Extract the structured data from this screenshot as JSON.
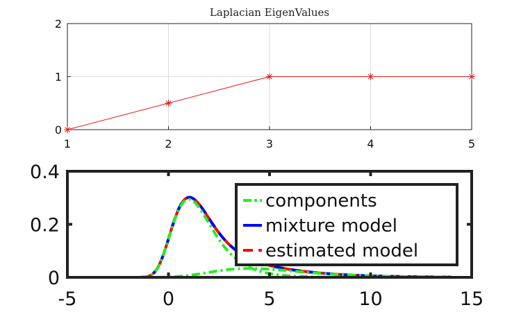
{
  "chart_data": [
    {
      "type": "line",
      "title": "Laplacian EigenValues",
      "x": [
        1,
        2,
        3,
        4,
        5
      ],
      "series": [
        {
          "values": [
            0,
            0.5,
            1,
            1,
            1
          ],
          "color": "#e41a1c",
          "marker": "asterisk"
        }
      ],
      "xlim": [
        1,
        5
      ],
      "ylim": [
        0,
        2
      ],
      "xticks": [
        "1",
        "2",
        "3",
        "4",
        "5"
      ],
      "yticks": [
        "0",
        "1",
        "2"
      ],
      "grid": true
    },
    {
      "type": "line",
      "xlim": [
        -5,
        15
      ],
      "ylim": [
        0,
        0.4
      ],
      "xticks": [
        "-5",
        "0",
        "5",
        "10",
        "15"
      ],
      "yticks": [
        "0",
        "0.2",
        "0.4"
      ],
      "grid": false,
      "legend_position": "top-right",
      "mixture": {
        "x_range": [
          -4,
          14
        ],
        "components": [
          {
            "weight": 0.8,
            "mode": 1,
            "spread": 1.0
          },
          {
            "weight": 0.2,
            "mode": 4,
            "spread": 2.2
          }
        ]
      },
      "series": [
        {
          "name": "components",
          "color": "#22ee22",
          "style": "dash-dot"
        },
        {
          "name": "mixture model",
          "color": "#0000ff",
          "style": "solid"
        },
        {
          "name": "estimated model",
          "color": "#ff0000",
          "style": "dashed"
        }
      ]
    }
  ]
}
